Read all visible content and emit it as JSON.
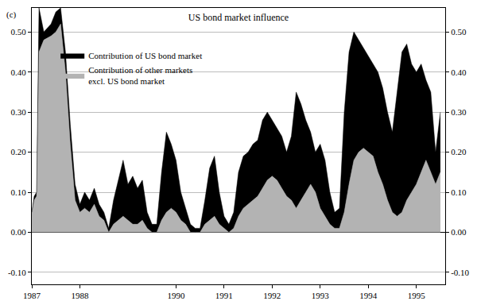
{
  "chart_data": {
    "type": "area",
    "stacked": true,
    "title": "US bond market influence",
    "annotations": [
      "(c)"
    ],
    "legend": "upper left",
    "grid": true,
    "x": [
      1987.0,
      1987.05,
      1987.1,
      1987.15,
      1987.25,
      1987.4,
      1987.5,
      1987.6,
      1987.7,
      1987.8,
      1987.9,
      1988.0,
      1988.1,
      1988.2,
      1988.3,
      1988.4,
      1988.5,
      1988.6,
      1988.7,
      1988.8,
      1988.9,
      1989.0,
      1989.1,
      1989.2,
      1989.3,
      1989.4,
      1989.5,
      1989.6,
      1989.7,
      1989.8,
      1989.9,
      1990.0,
      1990.1,
      1990.2,
      1990.3,
      1990.4,
      1990.5,
      1990.6,
      1990.7,
      1990.8,
      1990.9,
      1991.0,
      1991.1,
      1991.2,
      1991.3,
      1991.4,
      1991.5,
      1991.6,
      1991.7,
      1991.8,
      1991.9,
      1992.0,
      1992.1,
      1992.2,
      1992.3,
      1992.4,
      1992.5,
      1992.6,
      1992.7,
      1992.8,
      1992.9,
      1993.0,
      1993.1,
      1993.2,
      1993.3,
      1993.4,
      1993.5,
      1993.6,
      1993.7,
      1993.8,
      1993.9,
      1994.0,
      1994.1,
      1994.2,
      1994.3,
      1994.4,
      1994.5,
      1994.6,
      1994.7,
      1994.8,
      1994.9,
      1995.0,
      1995.1,
      1995.2,
      1995.3,
      1995.4,
      1995.5
    ],
    "series": [
      {
        "name": "Contribution of other markets\nexcl. US bond market",
        "color": "#b3b3b3",
        "values": [
          0.05,
          0.08,
          0.09,
          0.45,
          0.48,
          0.49,
          0.5,
          0.52,
          0.4,
          0.22,
          0.08,
          0.05,
          0.06,
          0.05,
          0.07,
          0.04,
          0.03,
          0.0,
          0.02,
          0.03,
          0.04,
          0.03,
          0.02,
          0.02,
          0.03,
          0.01,
          0.0,
          0.0,
          0.03,
          0.05,
          0.06,
          0.05,
          0.03,
          0.02,
          0.0,
          0.0,
          0.0,
          0.02,
          0.03,
          0.04,
          0.02,
          0.01,
          0.0,
          0.01,
          0.04,
          0.06,
          0.07,
          0.08,
          0.09,
          0.11,
          0.13,
          0.14,
          0.13,
          0.11,
          0.09,
          0.08,
          0.06,
          0.08,
          0.1,
          0.12,
          0.1,
          0.06,
          0.04,
          0.02,
          0.01,
          0.01,
          0.05,
          0.12,
          0.18,
          0.2,
          0.21,
          0.2,
          0.19,
          0.15,
          0.12,
          0.08,
          0.05,
          0.04,
          0.05,
          0.08,
          0.1,
          0.12,
          0.15,
          0.18,
          0.15,
          0.12,
          0.15
        ]
      },
      {
        "name": "Contribution of US bond market",
        "color": "#000000",
        "values": [
          0.0,
          0.01,
          0.01,
          0.11,
          0.02,
          0.03,
          0.05,
          0.04,
          0.05,
          0.05,
          0.04,
          0.02,
          0.04,
          0.03,
          0.04,
          0.03,
          0.02,
          0.01,
          0.06,
          0.1,
          0.14,
          0.09,
          0.12,
          0.09,
          0.1,
          0.04,
          0.02,
          0.02,
          0.12,
          0.2,
          0.16,
          0.13,
          0.07,
          0.04,
          0.02,
          0.01,
          0.01,
          0.06,
          0.13,
          0.15,
          0.08,
          0.03,
          0.02,
          0.04,
          0.11,
          0.13,
          0.13,
          0.14,
          0.14,
          0.17,
          0.17,
          0.14,
          0.13,
          0.13,
          0.11,
          0.16,
          0.29,
          0.24,
          0.18,
          0.13,
          0.1,
          0.16,
          0.14,
          0.08,
          0.04,
          0.05,
          0.25,
          0.33,
          0.32,
          0.28,
          0.25,
          0.24,
          0.23,
          0.25,
          0.24,
          0.22,
          0.2,
          0.31,
          0.4,
          0.39,
          0.32,
          0.28,
          0.27,
          0.2,
          0.2,
          0.08,
          0.15
        ]
      }
    ],
    "xlim": [
      1987,
      1995.6
    ],
    "xticks": [
      1987,
      1988,
      1990,
      1991,
      1992,
      1993,
      1994,
      1995
    ],
    "ylim": [
      -0.13,
      0.56
    ],
    "yticks": [
      {
        "value": -0.1,
        "label": "-0.10"
      },
      {
        "value": 0,
        "label": "0.00"
      },
      {
        "value": 0.1,
        "label": "0.10"
      },
      {
        "value": 0.2,
        "label": "0.20"
      },
      {
        "value": 0.3,
        "label": "0.30"
      },
      {
        "value": 0.4,
        "label": "0.40"
      },
      {
        "value": 0.5,
        "label": "0.50"
      }
    ],
    "y2lim": [
      -0.13,
      0.56
    ],
    "y2ticks": [
      {
        "value": -0.1,
        "label": "-0.10"
      },
      {
        "value": 0,
        "label": "0.00"
      },
      {
        "value": 0.1,
        "label": "0.10"
      },
      {
        "value": 0.2,
        "label": "0.20"
      },
      {
        "value": 0.3,
        "label": "0.30"
      },
      {
        "value": 0.4,
        "label": "0.40"
      },
      {
        "value": 0.5,
        "label": "0.50"
      }
    ]
  }
}
